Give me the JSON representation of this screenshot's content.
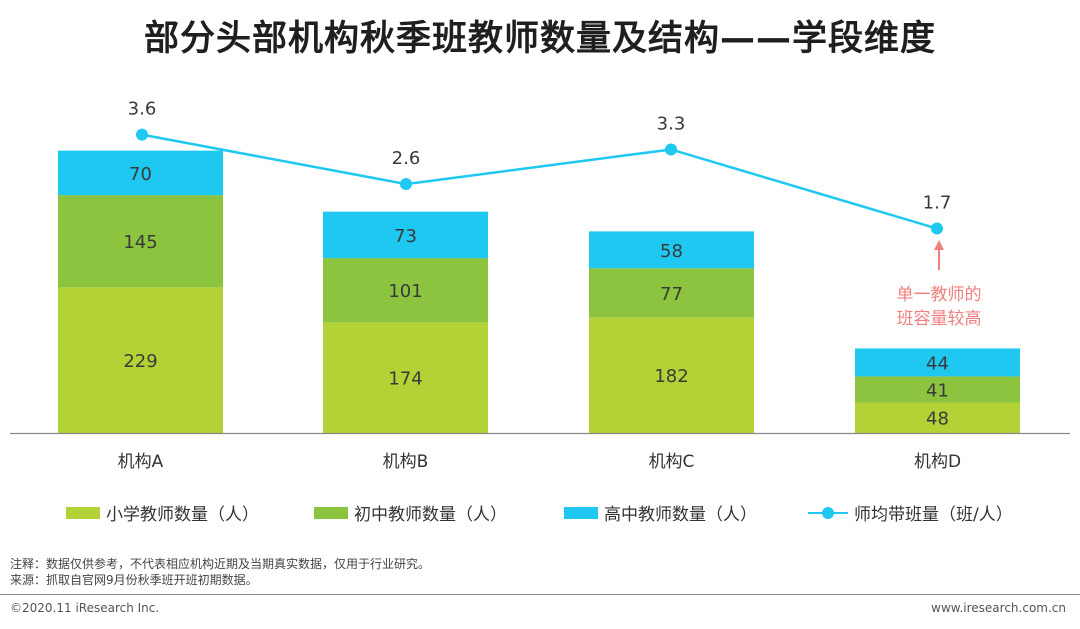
{
  "title": "部分头部机构秋季班教师数量及结构——学段维度",
  "chart_data": {
    "type": "bar",
    "stacked": true,
    "categories": [
      "机构A",
      "机构B",
      "机构C",
      "机构D"
    ],
    "series": [
      {
        "name": "小学教师数量（人）",
        "values": [
          229,
          174,
          182,
          48
        ],
        "color": "#b3d236"
      },
      {
        "name": "初中教师数量（人）",
        "values": [
          145,
          101,
          77,
          41
        ],
        "color": "#8cc43f"
      },
      {
        "name": "高中教师数量（人）",
        "values": [
          70,
          73,
          58,
          44
        ],
        "color": "#1ec8f0"
      }
    ],
    "line_series": {
      "name": "师均带班量（班/人）",
      "values": [
        3.6,
        2.6,
        3.3,
        1.7
      ],
      "color": "#1ec8f0"
    },
    "annotation": {
      "target": "机构D",
      "text_line1": "单一教师的",
      "text_line2": "班容量较高",
      "color": "#f08080"
    },
    "legend_position": "bottom",
    "grid": false
  },
  "notes": {
    "note": "注释：数据仅供参考，不代表相应机构近期及当期真实数据，仅用于行业研究。",
    "source": "来源：抓取自官网9月份秋季班开班初期数据。"
  },
  "footer": {
    "copyright": "©2020.11 iResearch Inc.",
    "website": "www.iresearch.com.cn"
  }
}
